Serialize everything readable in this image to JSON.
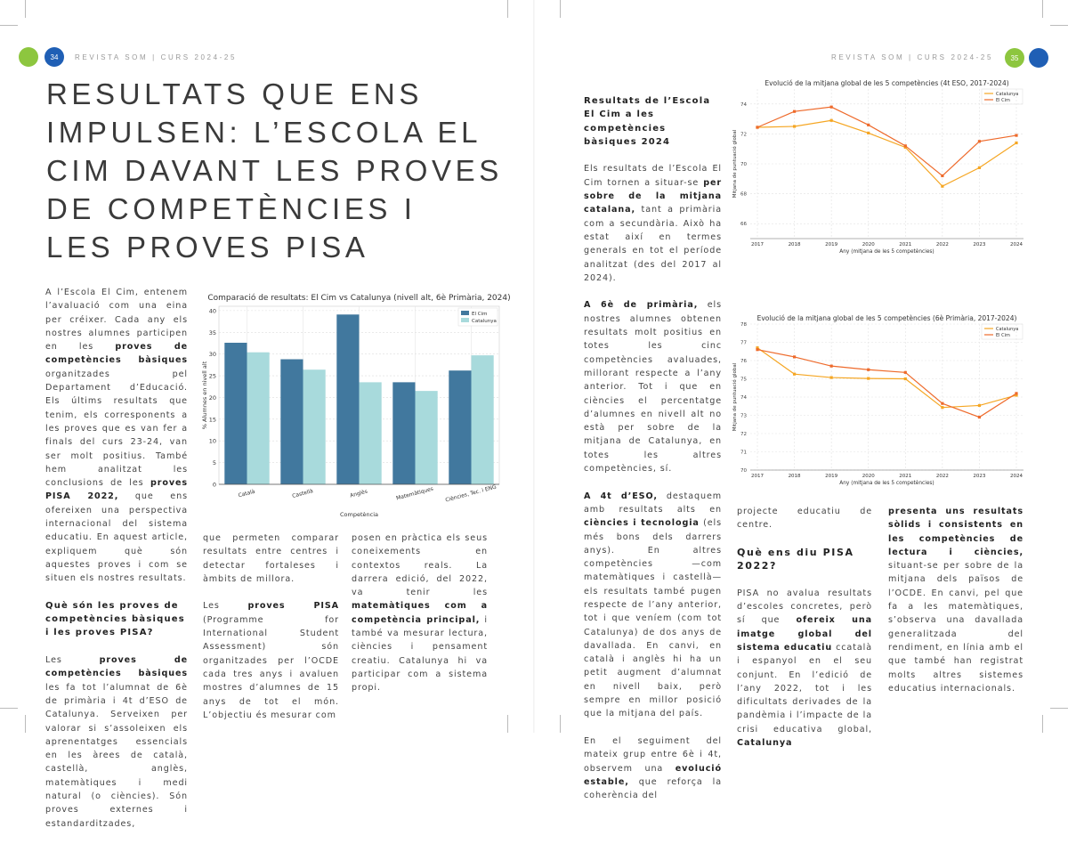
{
  "left_page": {
    "page_number": "34",
    "running_head": "REVISTA SOM | CURS 2024-25",
    "title": "RESULTATS QUE ENS IMPULSEN: L’ESCOLA EL CIM DAVANT LES PROVES DE COMPETÈNCIES I LES PROVES PISA",
    "title_lines": [
      "RESULTATS QUE ENS",
      "IMPULSEN: L’ESCOLA EL",
      "CIM DAVANT LES PROVES",
      "DE COMPETÈNCIES I",
      "LES PROVES PISA"
    ],
    "columns": [
      [
        {
          "type": "p",
          "segs": [
            [
              "A l’Escola El Cim, entenem l’avaluació com una eina per créixer. Cada any els nostres alumnes participen en les ",
              0
            ],
            [
              "proves de competències bàsiques",
              1
            ],
            [
              " organitzades pel Departament d’Educació. Els últims resultats que tenim, els corresponents a les proves que es van fer a finals del curs 23-24, van ser molt positius. També hem analitzat les conclusions de les ",
              0
            ],
            [
              "proves PISA 2022,",
              1
            ],
            [
              " que ens ofereixen una perspectiva internacional del sistema educatiu. En aquest article, expliquem què són aquestes proves i com se situen els nostres resultats.",
              0
            ]
          ]
        },
        {
          "type": "h",
          "segs": [
            [
              "Què són les proves de competències bàsiques i les proves PISA?",
              1
            ]
          ]
        },
        {
          "type": "p",
          "segs": [
            [
              "Les ",
              0
            ],
            [
              "proves de competències bàsiques",
              1
            ],
            [
              " les fa tot l’alumnat de 6è de primària i 4t d’ESO de Catalunya. Serveixen per valorar si s’assoleixen els aprenentatges essencials en les àrees de català, castellà, anglès, matemàtiques i medi natural (o ciències). Són proves externes i estandarditzades,",
              0
            ]
          ]
        }
      ],
      [
        {
          "type": "p",
          "segs": [
            [
              "que permeten comparar resultats entre centres i detectar fortaleses i àmbits de millora.",
              0
            ]
          ]
        },
        {
          "type": "p",
          "segs": [
            [
              "Les ",
              0
            ],
            [
              "proves PISA",
              1
            ],
            [
              " (Programme for International Student Assessment) són organitzades per l’OCDE cada tres anys i avaluen mostres d’alumnes de 15 anys de tot el món. L’objectiu és mesurar com",
              0
            ]
          ]
        }
      ],
      [
        {
          "type": "p",
          "segs": [
            [
              "posen en pràctica els seus coneixements en contextos reals. La darrera edició, del 2022, va tenir les ",
              0
            ],
            [
              "matemàtiques com a competència principal,",
              1
            ],
            [
              " i també va mesurar lectura, ciències i pensament creatiu. Catalunya hi va participar com a sistema propi.",
              0
            ]
          ]
        }
      ]
    ]
  },
  "right_page": {
    "page_number": "35",
    "running_head": "REVISTA SOM | CURS 2024-25",
    "columns": [
      [
        {
          "type": "h",
          "segs": [
            [
              "Resultats de l’Escola El Cim a les competències bàsiques 2024",
              1
            ]
          ]
        },
        {
          "type": "p",
          "segs": [
            [
              "Els resultats de l’Escola El Cim tornen a situar-se ",
              0
            ],
            [
              "per sobre de la mitjana catalana,",
              1
            ],
            [
              " tant a primària com a secundària. Això ha estat així en termes generals en tot el període analitzat (des del 2017 al 2024).",
              0
            ]
          ]
        },
        {
          "type": "p",
          "segs": [
            [
              "A 6è de primària,",
              1
            ],
            [
              " els nostres alumnes obtenen resultats molt positius en totes les cinc competències avaluades, millorant respecte a l’any anterior. Tot i que en ciències el percentatge d’alumnes en nivell alt no està per sobre de la mitjana de Catalunya, en totes les altres competències, sí.",
              0
            ]
          ]
        },
        {
          "type": "p",
          "segs": [
            [
              "A 4t d’ESO,",
              1
            ],
            [
              " destaquem amb resultats alts en ",
              0
            ],
            [
              "ciències i tecnologia",
              1
            ],
            [
              " (els més bons dels darrers anys). En altres competències —com matemàtiques i castellà— els resultats també pugen respecte de l’any anterior, tot i que veníem (com tot Catalunya) de dos anys de davallada. En canvi, en català i anglès hi ha un petit augment d’alumnat en nivell baix, però sempre en millor posició que la mitjana del país.",
              0
            ]
          ]
        },
        {
          "type": "p",
          "segs": [
            [
              "En el seguiment del mateix grup entre 6è i 4t, observem una ",
              0
            ],
            [
              "evolució estable,",
              1
            ],
            [
              " que reforça la coherència del",
              0
            ]
          ]
        }
      ],
      [
        {
          "type": "p",
          "segs": [
            [
              "projecte educatiu de centre.",
              0
            ]
          ]
        },
        {
          "type": "hbig",
          "segs": [
            [
              "Què ens diu PISA 2022?",
              1
            ]
          ]
        },
        {
          "type": "p",
          "segs": [
            [
              "PISA no avalua resultats d’escoles concretes, però sí que ",
              0
            ],
            [
              "ofereix una imatge global del sistema educatiu",
              1
            ],
            [
              " ccatalà i espanyol en el seu conjunt. En l’edició de l’any 2022, tot i les dificultats derivades de la pandèmia i l’impacte de la crisi educativa global, ",
              0
            ],
            [
              "Catalunya",
              1
            ]
          ]
        }
      ],
      [
        {
          "type": "p",
          "segs": [
            [
              "presenta uns resultats sòlids i consistents en les competències de lectura i ciències,",
              1
            ],
            [
              " situant-se per sobre de la mitjana dels països de l’OCDE. En canvi, pel que fa a les matemàtiques, s’observa una davallada generalitzada del rendiment, en línia amb el que també han registrat molts altres sistemes educatius internacionals.",
              0
            ]
          ]
        }
      ]
    ]
  },
  "colors": {
    "green": "#8dc63f",
    "blue": "#1f5fb5",
    "bar_elcim": "#41789e",
    "bar_catalunya": "#a8dadc",
    "line_catalunya": "#f5a623",
    "line_elcim": "#ee6a2b"
  },
  "chart_data": [
    {
      "type": "bar",
      "title": "Comparació de resultats: El Cim vs Catalunya (nivell alt, 6è Primària, 2024)",
      "xlabel": "Competència",
      "ylabel": "% Alumnes en nivell alt",
      "categories": [
        "Català",
        "Castellà",
        "Anglès",
        "Matemàtiques",
        "Ciències, Tec. i ENG"
      ],
      "series": [
        {
          "name": "El Cim",
          "values": [
            32.6,
            28.8,
            39.1,
            23.5,
            26.2
          ]
        },
        {
          "name": "Catalunya",
          "values": [
            30.4,
            26.4,
            23.5,
            21.5,
            29.7
          ]
        }
      ],
      "ylim": [
        0,
        41
      ],
      "yticks": [
        0,
        5,
        10,
        15,
        20,
        25,
        30,
        35,
        40
      ],
      "grid": true,
      "legend": "top-right"
    },
    {
      "type": "line",
      "title": "Evolució de la mitjana global de les 5 competències (4t ESO, 2017-2024)",
      "xlabel": "Any (mitjana de les 5 competències)",
      "ylabel": "Mitjana de puntuació global",
      "x": [
        2017,
        2018,
        2019,
        2020,
        2021,
        2022,
        2023,
        2024
      ],
      "series": [
        {
          "name": "Catalunya",
          "values": [
            72.44,
            72.5,
            72.9,
            72.06,
            71.1,
            68.5,
            69.74,
            71.4
          ]
        },
        {
          "name": "El Cim",
          "values": [
            72.44,
            73.5,
            73.8,
            72.6,
            71.2,
            69.2,
            71.5,
            71.9
          ]
        }
      ],
      "ylim": [
        65,
        75
      ],
      "yticks": [
        66,
        68,
        70,
        72,
        74
      ],
      "grid": true,
      "legend": "top-right"
    },
    {
      "type": "line",
      "title": "Evolució de la mitjana global de les 5 competències (6è Primària, 2017-2024)",
      "xlabel": "Any (mitjana de les 5 competències)",
      "ylabel": "Mitjana de puntuació global",
      "x": [
        2017,
        2018,
        2019,
        2020,
        2021,
        2022,
        2023,
        2024
      ],
      "series": [
        {
          "name": "Catalunya",
          "values": [
            76.7,
            75.26,
            75.07,
            75.02,
            75.0,
            73.43,
            73.54,
            74.1
          ]
        },
        {
          "name": "El Cim",
          "values": [
            76.6,
            76.2,
            75.7,
            75.5,
            75.35,
            73.65,
            72.9,
            74.2
          ]
        }
      ],
      "ylim": [
        70,
        78
      ],
      "yticks": [
        70,
        71,
        72,
        73,
        74,
        75,
        76,
        77,
        78
      ],
      "grid": true,
      "legend": "top-right"
    }
  ]
}
